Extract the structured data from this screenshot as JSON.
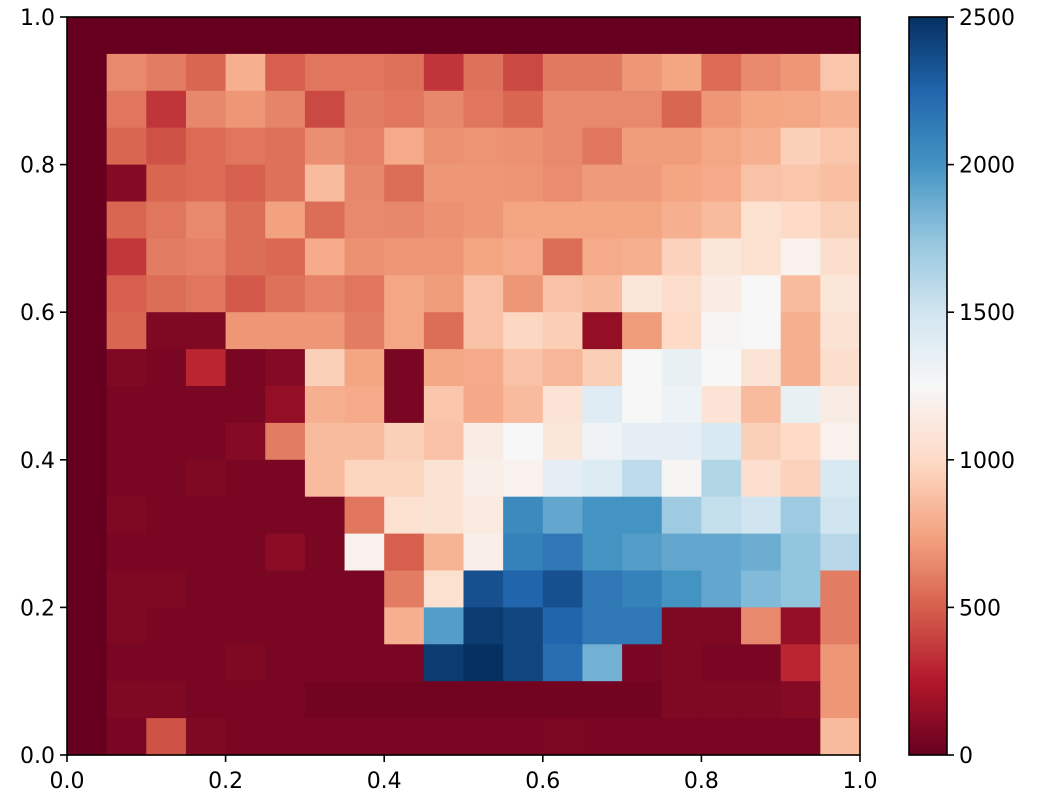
{
  "chart_data": {
    "type": "heatmap",
    "title": "",
    "xlabel": "",
    "ylabel": "",
    "xlim": [
      0.0,
      1.0
    ],
    "ylim": [
      0.0,
      1.0
    ],
    "grid": false,
    "colormap": "RdBu",
    "colorbar": {
      "range": [
        0,
        2500
      ],
      "ticks": [
        0,
        500,
        1000,
        1500,
        2000,
        2500
      ],
      "tick_labels": [
        "0",
        "500",
        "1000",
        "1500",
        "2000",
        "2500"
      ]
    },
    "x_ticks": [
      0.0,
      0.2,
      0.4,
      0.6,
      0.8,
      1.0
    ],
    "x_tick_labels": [
      "0.0",
      "0.2",
      "0.4",
      "0.6",
      "0.8",
      "1.0"
    ],
    "y_ticks": [
      0.0,
      0.2,
      0.4,
      0.6,
      0.8,
      1.0
    ],
    "y_tick_labels": [
      "0.0",
      "0.2",
      "0.4",
      "0.6",
      "0.8",
      "1.0"
    ],
    "grid_size": [
      20,
      20
    ],
    "values_top_to_bottom": [
      [
        0,
        0,
        0,
        0,
        0,
        0,
        0,
        0,
        0,
        0,
        0,
        0,
        0,
        0,
        0,
        0,
        0,
        0,
        0,
        0
      ],
      [
        0,
        650,
        600,
        520,
        800,
        500,
        580,
        580,
        560,
        350,
        560,
        420,
        590,
        590,
        700,
        750,
        540,
        650,
        700,
        900
      ],
      [
        0,
        580,
        350,
        640,
        700,
        630,
        420,
        600,
        580,
        640,
        580,
        520,
        650,
        650,
        650,
        520,
        700,
        750,
        760,
        800
      ],
      [
        0,
        520,
        450,
        540,
        580,
        560,
        670,
        620,
        780,
        680,
        690,
        680,
        650,
        580,
        720,
        720,
        760,
        800,
        950,
        900
      ],
      [
        0,
        100,
        520,
        540,
        500,
        560,
        850,
        640,
        550,
        700,
        700,
        690,
        660,
        710,
        710,
        750,
        780,
        880,
        900,
        870
      ],
      [
        0,
        520,
        580,
        650,
        550,
        740,
        550,
        650,
        640,
        680,
        700,
        750,
        750,
        750,
        750,
        800,
        850,
        1050,
        1000,
        950
      ],
      [
        0,
        360,
        600,
        620,
        550,
        530,
        780,
        680,
        700,
        700,
        750,
        780,
        550,
        780,
        800,
        960,
        1100,
        1050,
        1200,
        1030
      ],
      [
        0,
        500,
        550,
        580,
        480,
        560,
        620,
        580,
        760,
        720,
        880,
        700,
        880,
        850,
        1100,
        1020,
        1150,
        1250,
        850,
        1100
      ],
      [
        0,
        520,
        80,
        80,
        700,
        700,
        700,
        600,
        760,
        550,
        880,
        980,
        940,
        150,
        720,
        1000,
        1230,
        1250,
        800,
        1070
      ],
      [
        0,
        80,
        60,
        300,
        60,
        100,
        950,
        750,
        60,
        760,
        780,
        880,
        830,
        940,
        1250,
        1350,
        1250,
        1080,
        800,
        1030
      ],
      [
        0,
        60,
        60,
        60,
        60,
        150,
        800,
        780,
        60,
        900,
        770,
        850,
        1080,
        1400,
        1250,
        1320,
        1080,
        850,
        1350,
        1150
      ],
      [
        0,
        60,
        60,
        60,
        100,
        600,
        850,
        850,
        950,
        880,
        1150,
        1250,
        1100,
        1300,
        1370,
        1370,
        1450,
        950,
        1000,
        1200
      ],
      [
        0,
        60,
        60,
        80,
        60,
        60,
        850,
        970,
        970,
        1070,
        1170,
        1200,
        1370,
        1420,
        1580,
        1230,
        1620,
        1040,
        960,
        1450
      ],
      [
        0,
        80,
        60,
        60,
        60,
        60,
        60,
        580,
        1050,
        1070,
        1130,
        2050,
        1900,
        2000,
        2000,
        1700,
        1550,
        1500,
        1700,
        1500
      ],
      [
        0,
        60,
        60,
        60,
        60,
        120,
        60,
        1200,
        500,
        820,
        1170,
        2100,
        2150,
        2000,
        1950,
        1900,
        1900,
        1870,
        1750,
        1600
      ],
      [
        0,
        80,
        80,
        60,
        60,
        60,
        60,
        60,
        600,
        1050,
        2350,
        2250,
        2350,
        2150,
        2100,
        2000,
        1900,
        1800,
        1750,
        600
      ],
      [
        0,
        80,
        60,
        60,
        60,
        60,
        60,
        60,
        800,
        1950,
        2450,
        2400,
        2250,
        2150,
        2150,
        80,
        80,
        650,
        150,
        600
      ],
      [
        0,
        60,
        60,
        60,
        80,
        60,
        60,
        60,
        60,
        2450,
        2500,
        2400,
        2200,
        1850,
        60,
        80,
        60,
        60,
        300,
        700
      ],
      [
        0,
        80,
        80,
        60,
        60,
        60,
        40,
        40,
        40,
        40,
        40,
        40,
        40,
        40,
        40,
        80,
        80,
        80,
        100,
        700
      ],
      [
        0,
        60,
        450,
        80,
        60,
        60,
        60,
        60,
        60,
        60,
        60,
        60,
        70,
        60,
        60,
        60,
        60,
        60,
        60,
        850
      ]
    ]
  }
}
